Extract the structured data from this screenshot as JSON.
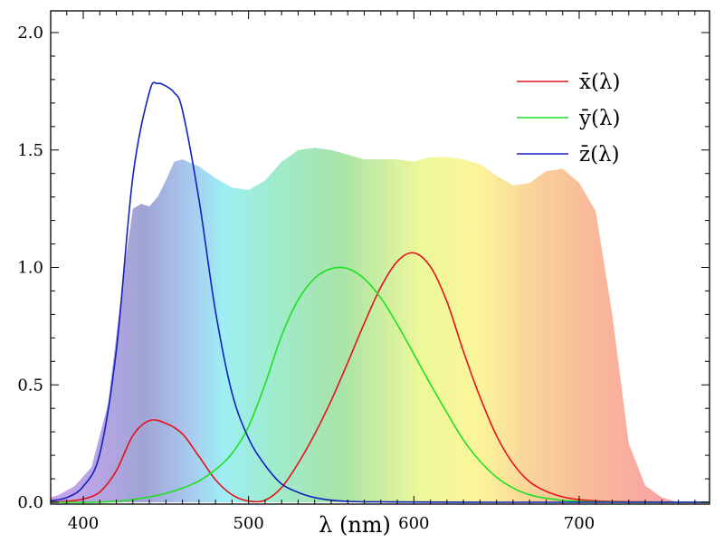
{
  "chart_data": {
    "type": "line",
    "title": "",
    "xlabel": "λ (nm)",
    "ylabel": "",
    "xlim": [
      380,
      780
    ],
    "ylim": [
      0,
      2.1
    ],
    "x_ticks": [
      400,
      500,
      600,
      700
    ],
    "y_ticks": [
      "0.0",
      "0.5",
      "1.0",
      "1.5",
      "2.0"
    ],
    "legend_position": "top-right",
    "series": [
      {
        "name": "x̄(λ)",
        "color": "#e8101a",
        "x": [
          380,
          390,
          400,
          410,
          420,
          430,
          440,
          450,
          460,
          470,
          480,
          490,
          500,
          510,
          520,
          530,
          540,
          550,
          560,
          570,
          580,
          590,
          600,
          610,
          620,
          630,
          640,
          650,
          660,
          670,
          680,
          690,
          700,
          710,
          720,
          740,
          760,
          780
        ],
        "values": [
          0.001,
          0.004,
          0.014,
          0.044,
          0.134,
          0.284,
          0.348,
          0.336,
          0.291,
          0.195,
          0.096,
          0.032,
          0.005,
          0.009,
          0.063,
          0.166,
          0.29,
          0.433,
          0.595,
          0.762,
          0.916,
          1.026,
          1.062,
          1.003,
          0.854,
          0.642,
          0.448,
          0.284,
          0.165,
          0.087,
          0.047,
          0.023,
          0.011,
          0.006,
          0.003,
          0.001,
          0.0,
          0.0
        ]
      },
      {
        "name": "ȳ(λ)",
        "color": "#20e020",
        "x": [
          380,
          390,
          400,
          410,
          420,
          430,
          440,
          450,
          460,
          470,
          480,
          490,
          500,
          510,
          520,
          530,
          540,
          550,
          560,
          570,
          580,
          590,
          600,
          610,
          620,
          630,
          640,
          650,
          660,
          670,
          680,
          690,
          700,
          710,
          720,
          740,
          760,
          780
        ],
        "values": [
          0.0,
          0.0,
          0.0,
          0.001,
          0.004,
          0.012,
          0.023,
          0.038,
          0.06,
          0.091,
          0.139,
          0.208,
          0.323,
          0.503,
          0.71,
          0.862,
          0.954,
          0.995,
          0.995,
          0.952,
          0.87,
          0.757,
          0.631,
          0.503,
          0.381,
          0.265,
          0.175,
          0.107,
          0.061,
          0.032,
          0.017,
          0.008,
          0.004,
          0.002,
          0.001,
          0.0,
          0.0,
          0.0
        ]
      },
      {
        "name": "z̄(λ)",
        "color": "#1020c0",
        "x": [
          380,
          390,
          400,
          410,
          420,
          430,
          440,
          445,
          450,
          455,
          460,
          470,
          480,
          490,
          500,
          510,
          520,
          530,
          540,
          550,
          560,
          570,
          580,
          600,
          650,
          700,
          780
        ],
        "values": [
          0.006,
          0.02,
          0.068,
          0.207,
          0.646,
          1.386,
          1.747,
          1.783,
          1.772,
          1.744,
          1.669,
          1.288,
          0.813,
          0.465,
          0.272,
          0.158,
          0.078,
          0.042,
          0.02,
          0.009,
          0.004,
          0.002,
          0.002,
          0.001,
          0.0,
          0.0,
          0.0
        ]
      }
    ],
    "background_band": {
      "name": "visible spectrum",
      "x": [
        375,
        385,
        395,
        405,
        415,
        425,
        430,
        435,
        440,
        445,
        450,
        455,
        460,
        470,
        480,
        490,
        500,
        510,
        520,
        530,
        540,
        550,
        560,
        570,
        580,
        590,
        600,
        610,
        620,
        630,
        640,
        650,
        660,
        670,
        680,
        690,
        700,
        710,
        720,
        730,
        740,
        750,
        760,
        770,
        780
      ],
      "values": [
        0.01,
        0.03,
        0.07,
        0.15,
        0.42,
        1.0,
        1.25,
        1.27,
        1.26,
        1.3,
        1.37,
        1.45,
        1.46,
        1.43,
        1.38,
        1.34,
        1.33,
        1.37,
        1.45,
        1.5,
        1.51,
        1.5,
        1.48,
        1.46,
        1.46,
        1.46,
        1.45,
        1.47,
        1.47,
        1.46,
        1.44,
        1.39,
        1.35,
        1.36,
        1.41,
        1.42,
        1.36,
        1.24,
        0.8,
        0.25,
        0.07,
        0.02,
        0.0,
        0.0,
        0.0
      ]
    }
  }
}
